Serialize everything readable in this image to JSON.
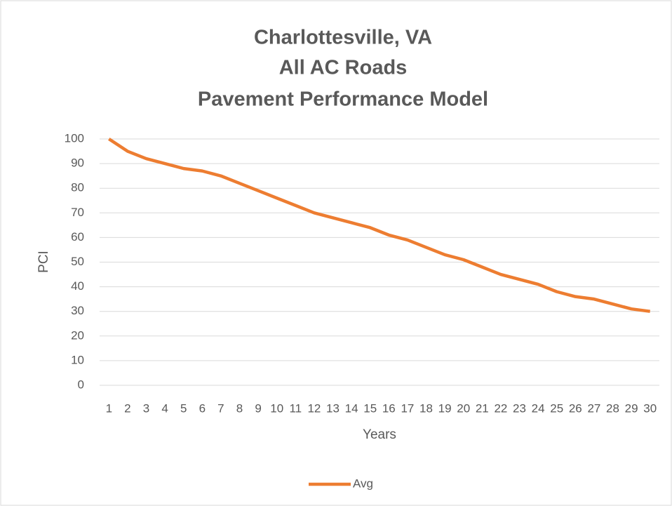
{
  "chart_data": {
    "type": "line",
    "title": [
      "Charlottesville, VA",
      "All AC Roads",
      "Pavement Performance Model"
    ],
    "x_label": "Years",
    "y_label": "PCI",
    "categories": [
      1,
      2,
      3,
      4,
      5,
      6,
      7,
      8,
      9,
      10,
      11,
      12,
      13,
      14,
      15,
      16,
      17,
      18,
      19,
      20,
      21,
      22,
      23,
      24,
      25,
      26,
      27,
      28,
      29,
      30
    ],
    "series": [
      {
        "name": "Avg",
        "color": "#ed7d31",
        "values": [
          100,
          95,
          92,
          90,
          88,
          87,
          85,
          82,
          79,
          76,
          73,
          70,
          68,
          66,
          64,
          61,
          59,
          56,
          53,
          51,
          48,
          45,
          43,
          41,
          38,
          36,
          35,
          33,
          31,
          30
        ]
      }
    ],
    "ylim": [
      0,
      100
    ],
    "yticks": [
      0,
      10,
      20,
      30,
      40,
      50,
      60,
      70,
      80,
      90,
      100
    ],
    "grid": true,
    "legend": "bottom"
  }
}
